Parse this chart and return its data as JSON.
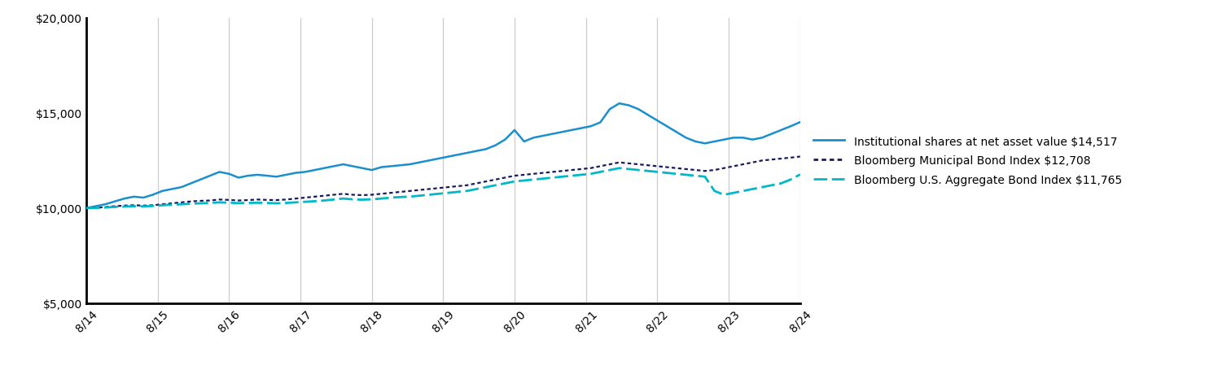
{
  "x_labels": [
    "8/14",
    "8/15",
    "8/16",
    "8/17",
    "8/18",
    "8/19",
    "8/20",
    "8/21",
    "8/22",
    "8/23",
    "8/24"
  ],
  "ylim": [
    5000,
    20000
  ],
  "yticks": [
    5000,
    10000,
    15000,
    20000
  ],
  "ytick_labels": [
    "$5,000",
    "$10,000",
    "$15,000",
    "$20,000"
  ],
  "grid_color": "#cccccc",
  "line1_color": "#1a8fce",
  "line2_color": "#1a1a5e",
  "line3_color": "#00b8c8",
  "legend_labels": [
    "Institutional shares at net asset value $14,517",
    "Bloomberg Municipal Bond Index $12,708",
    "Bloomberg U.S. Aggregate Bond Index $11,765"
  ],
  "series1": [
    10000,
    10100,
    10200,
    10350,
    10500,
    10600,
    10550,
    10700,
    10900,
    11000,
    11100,
    11300,
    11500,
    11700,
    11900,
    11800,
    11600,
    11700,
    11750,
    11700,
    11650,
    11750,
    11850,
    11900,
    12000,
    12100,
    12200,
    12300,
    12200,
    12100,
    12000,
    12150,
    12200,
    12250,
    12300,
    12400,
    12500,
    12600,
    12700,
    12800,
    12900,
    13000,
    13100,
    13300,
    13600,
    14100,
    13500,
    13700,
    13800,
    13900,
    14000,
    14100,
    14200,
    14300,
    14500,
    15200,
    15500,
    15400,
    15200,
    14900,
    14600,
    14300,
    14000,
    13700,
    13500,
    13400,
    13500,
    13600,
    13700,
    13700,
    13600,
    13700,
    13900,
    14100,
    14300,
    14517
  ],
  "series2": [
    10000,
    10020,
    10050,
    10100,
    10130,
    10150,
    10130,
    10150,
    10200,
    10250,
    10300,
    10350,
    10380,
    10400,
    10450,
    10430,
    10400,
    10420,
    10450,
    10430,
    10420,
    10450,
    10500,
    10550,
    10600,
    10650,
    10700,
    10750,
    10700,
    10680,
    10700,
    10750,
    10800,
    10850,
    10900,
    10950,
    11000,
    11050,
    11100,
    11150,
    11200,
    11300,
    11400,
    11500,
    11600,
    11700,
    11750,
    11800,
    11850,
    11900,
    11950,
    12000,
    12050,
    12100,
    12200,
    12300,
    12400,
    12350,
    12300,
    12250,
    12200,
    12150,
    12100,
    12050,
    12000,
    11950,
    12000,
    12100,
    12200,
    12300,
    12400,
    12500,
    12550,
    12600,
    12650,
    12708
  ],
  "series3": [
    10000,
    10010,
    10030,
    10060,
    10080,
    10100,
    10090,
    10110,
    10150,
    10180,
    10200,
    10230,
    10250,
    10270,
    10300,
    10280,
    10260,
    10270,
    10280,
    10270,
    10250,
    10270,
    10300,
    10330,
    10360,
    10400,
    10450,
    10500,
    10460,
    10440,
    10460,
    10500,
    10550,
    10580,
    10600,
    10650,
    10700,
    10750,
    10800,
    10850,
    10900,
    11000,
    11100,
    11200,
    11300,
    11400,
    11450,
    11500,
    11550,
    11600,
    11650,
    11700,
    11750,
    11800,
    11900,
    12000,
    12100,
    12050,
    12000,
    11950,
    11900,
    11850,
    11800,
    11750,
    11700,
    11650,
    10900,
    10700,
    10800,
    10900,
    11000,
    11100,
    11200,
    11300,
    11500,
    11765
  ]
}
